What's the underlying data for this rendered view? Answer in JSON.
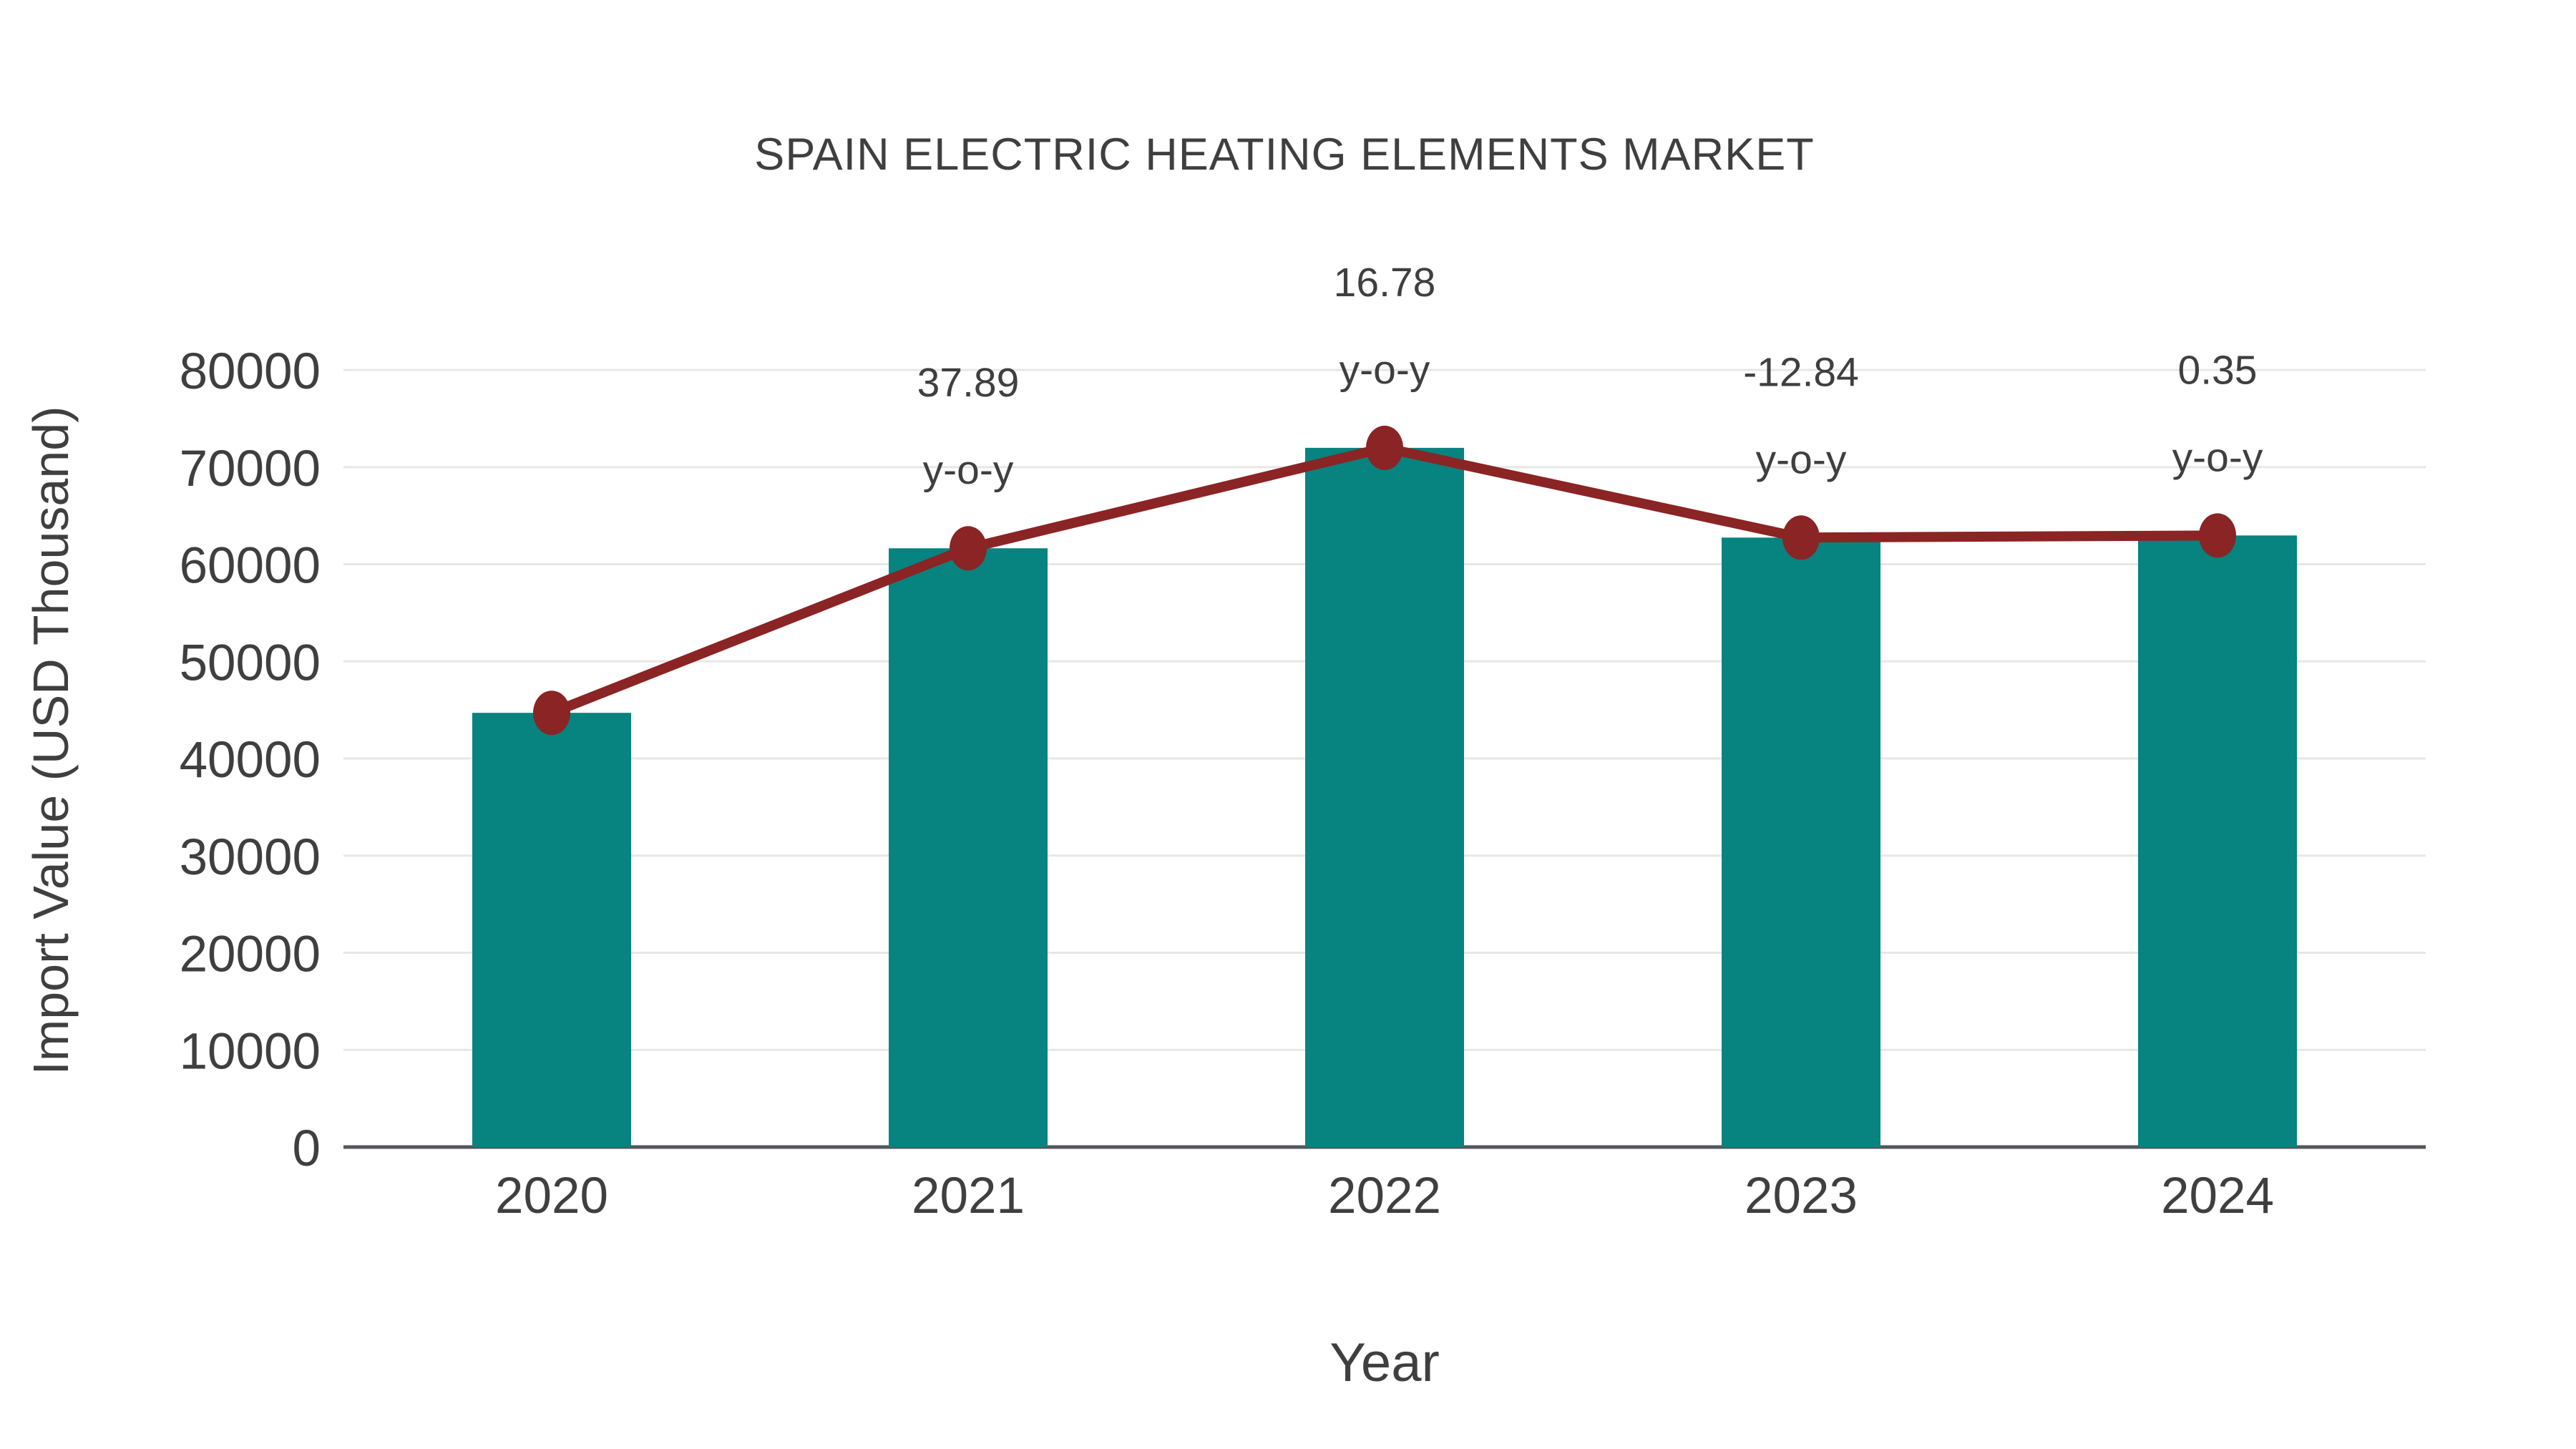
{
  "chart_data": {
    "type": "bar",
    "title": "SPAIN ELECTRIC HEATING ELEMENTS MARKET",
    "xlabel": "Year",
    "ylabel": "Import Value (USD Thousand)",
    "categories": [
      "2020",
      "2021",
      "2022",
      "2023",
      "2024"
    ],
    "series": [
      {
        "name": "import-value-bars",
        "type": "bar",
        "values": [
          44700,
          61640,
          71980,
          62740,
          62960
        ]
      },
      {
        "name": "import-value-trend",
        "type": "line",
        "values": [
          44700,
          61640,
          71980,
          62740,
          62960
        ]
      }
    ],
    "annotations": [
      {
        "category": "2021",
        "line1": "37.89",
        "line2": "y-o-y"
      },
      {
        "category": "2022",
        "line1": "16.78",
        "line2": "y-o-y"
      },
      {
        "category": "2023",
        "line1": "-12.84",
        "line2": "y-o-y"
      },
      {
        "category": "2024",
        "line1": "0.35",
        "line2": "y-o-y"
      }
    ],
    "yticks": [
      0,
      10000,
      20000,
      30000,
      40000,
      50000,
      60000,
      70000,
      80000
    ],
    "ytick_labels": [
      "0",
      "10000",
      "20000",
      "30000",
      "40000",
      "50000",
      "60000",
      "70000",
      "80000"
    ],
    "ylim": [
      0,
      86000
    ],
    "grid": "horizontal",
    "legend": "none",
    "colors": {
      "bar": "#078380",
      "line": "#8B2424",
      "marker": "#8B2424",
      "gridline": "#e7e7e7",
      "axis_line": "#54565b",
      "text": "#3f3f3f",
      "background": "#ffffff"
    }
  }
}
